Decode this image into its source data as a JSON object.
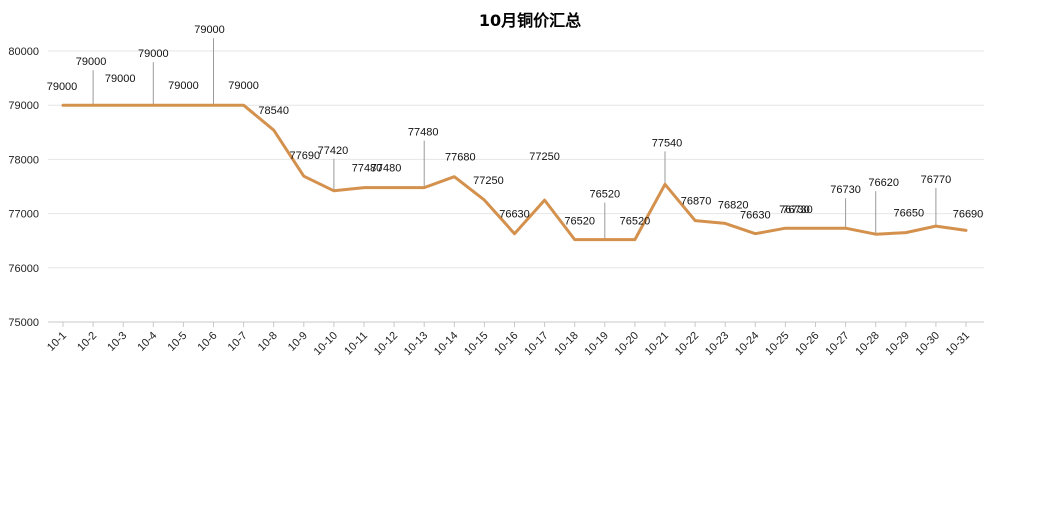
{
  "chart_data": {
    "type": "line",
    "title": "10月铜价汇总",
    "xlabel": "",
    "ylabel": "",
    "ylim": [
      75000,
      80000
    ],
    "yticks": [
      75000,
      76000,
      77000,
      78000,
      79000,
      80000
    ],
    "grid": true,
    "legend": "none",
    "categories": [
      "10-1",
      "10-2",
      "10-3",
      "10-4",
      "10-5",
      "10-6",
      "10-7",
      "10-8",
      "10-9",
      "10-10",
      "10-11",
      "10-12",
      "10-13",
      "10-14",
      "10-15",
      "10-16",
      "10-17",
      "10-18",
      "10-19",
      "10-20",
      "10-21",
      "10-22",
      "10-23",
      "10-24",
      "10-25",
      "10-26",
      "10-27",
      "10-28",
      "10-29",
      "10-30",
      "10-31"
    ],
    "series": [
      {
        "color": "#D4914D",
        "values": [
          79000,
          79000,
          79000,
          79000,
          79000,
          79000,
          79000,
          78540,
          77690,
          77420,
          77480,
          77480,
          77480,
          77680,
          77250,
          76630,
          77250,
          76520,
          76520,
          76520,
          77540,
          76870,
          76820,
          76630,
          76730,
          76730,
          76730,
          76620,
          76650,
          76770,
          76690
        ]
      }
    ]
  }
}
